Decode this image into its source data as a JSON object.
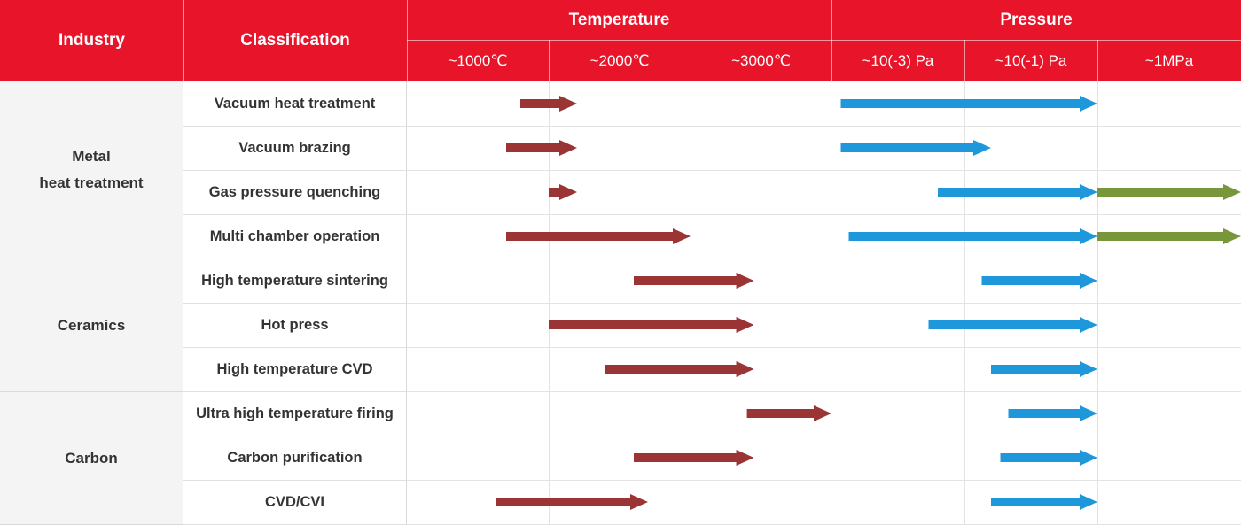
{
  "header": {
    "industry": "Industry",
    "classification": "Classification",
    "temperature": "Temperature",
    "pressure": "Pressure",
    "temp_cols": [
      "~1000℃",
      "~2000℃",
      "~3000℃"
    ],
    "pressure_cols": [
      "~10(-3) Pa",
      "~10(-1) Pa",
      "~1MPa"
    ]
  },
  "industries": [
    {
      "name": "Metal\nheat treatment"
    },
    {
      "name": "Ceramics"
    },
    {
      "name": "Carbon"
    }
  ],
  "colors": {
    "header_red": "#e8152a",
    "temperature_arrow": "#9b3434",
    "vacuum_pressure_arrow": "#1f97db",
    "high_pressure_arrow": "#77973a"
  },
  "chart_data": {
    "type": "table",
    "temperature_columns": [
      "~1000℃",
      "~2000℃",
      "~3000℃"
    ],
    "pressure_columns": [
      "~10(-3) Pa",
      "~10(-1) Pa",
      "~1MPa"
    ],
    "rows": [
      {
        "industry": "Metal\nheat treatment",
        "classification": "Vacuum heat treatment",
        "temperature": [
          0.8,
          1.2
        ],
        "vacuum_pressure": [
          0.07,
          2.0
        ],
        "high_pressure": null
      },
      {
        "industry": "Metal\nheat treatment",
        "classification": "Vacuum brazing",
        "temperature": [
          0.7,
          1.2
        ],
        "vacuum_pressure": [
          0.07,
          1.2
        ],
        "high_pressure": null
      },
      {
        "industry": "Metal\nheat treatment",
        "classification": "Gas pressure quenching",
        "temperature": [
          1.0,
          1.2
        ],
        "vacuum_pressure": [
          0.8,
          2.0
        ],
        "high_pressure": [
          2.0,
          3.0
        ]
      },
      {
        "industry": "Metal\nheat treatment",
        "classification": "Multi chamber operation",
        "temperature": [
          0.7,
          2.0
        ],
        "vacuum_pressure": [
          0.13,
          2.0
        ],
        "high_pressure": [
          2.0,
          3.0
        ]
      },
      {
        "industry": "Ceramics",
        "classification": "High temperature sintering",
        "temperature": [
          1.6,
          2.45
        ],
        "vacuum_pressure": [
          1.13,
          2.0
        ],
        "high_pressure": null
      },
      {
        "industry": "Ceramics",
        "classification": "Hot press",
        "temperature": [
          1.0,
          2.45
        ],
        "vacuum_pressure": [
          0.73,
          2.0
        ],
        "high_pressure": null
      },
      {
        "industry": "Ceramics",
        "classification": "High temperature CVD",
        "temperature": [
          1.4,
          2.45
        ],
        "vacuum_pressure": [
          1.2,
          2.0
        ],
        "high_pressure": null
      },
      {
        "industry": "Carbon",
        "classification": "Ultra high temperature firing",
        "temperature": [
          2.4,
          3.0
        ],
        "vacuum_pressure": [
          1.33,
          2.0
        ],
        "high_pressure": null
      },
      {
        "industry": "Carbon",
        "classification": "Carbon purification",
        "temperature": [
          1.6,
          2.45
        ],
        "vacuum_pressure": [
          1.27,
          2.0
        ],
        "high_pressure": null
      },
      {
        "industry": "Carbon",
        "classification": "CVD/CVI",
        "temperature": [
          0.63,
          1.7
        ],
        "vacuum_pressure": [
          1.2,
          2.0
        ],
        "high_pressure": null
      }
    ]
  }
}
